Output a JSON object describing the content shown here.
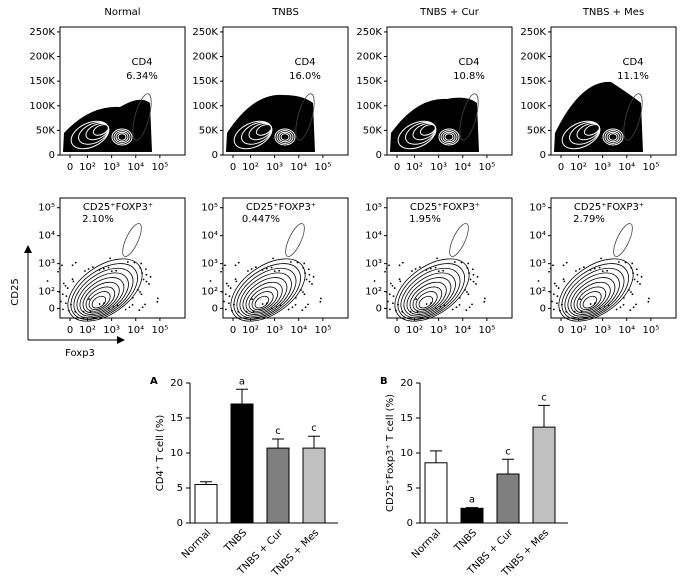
{
  "flow": {
    "axis_y_label": "CD25",
    "axis_x_label": "Foxp3",
    "top_yticks": [
      {
        "value": 0,
        "label": "0"
      },
      {
        "value": 50000,
        "label": "50K"
      },
      {
        "value": 100000,
        "label": "100K"
      },
      {
        "value": 150000,
        "label": "150K"
      },
      {
        "value": 200000,
        "label": "200K"
      },
      {
        "value": 250000,
        "label": "250K"
      }
    ],
    "ylim_top": [
      0,
      260000
    ],
    "xticks": [
      {
        "value": 0,
        "label": "0"
      },
      {
        "value": 100,
        "label": "10²"
      },
      {
        "value": 1000,
        "label": "10³"
      },
      {
        "value": 10000,
        "label": "10⁴"
      },
      {
        "value": 100000,
        "label": "10⁵"
      }
    ],
    "bottom_yticks": [
      {
        "value": 0,
        "label": "0"
      },
      {
        "value": 100,
        "label": "10²"
      },
      {
        "value": 1000,
        "label": "10³"
      },
      {
        "value": 10000,
        "label": "10⁴"
      },
      {
        "value": 100000,
        "label": "10⁵"
      }
    ],
    "panels": [
      {
        "title": "Normal",
        "top_gate": "CD4",
        "top_pct": "6.34%",
        "bottom_gate": "CD25⁺FOXP3⁺",
        "bottom_pct": "2.10%"
      },
      {
        "title": "TNBS",
        "top_gate": "CD4",
        "top_pct": "16.0%",
        "bottom_gate": "CD25⁺FOXP3⁺",
        "bottom_pct": "0.447%"
      },
      {
        "title": "TNBS + Cur",
        "top_gate": "CD4",
        "top_pct": "10.8%",
        "bottom_gate": "CD25⁺FOXP3⁺",
        "bottom_pct": "1.95%"
      },
      {
        "title": "TNBS + Mes",
        "top_gate": "CD4",
        "top_pct": "11.1%",
        "bottom_gate": "CD25⁺FOXP3⁺",
        "bottom_pct": "2.79%"
      }
    ]
  },
  "chart_data": [
    {
      "type": "bar",
      "panel": "A",
      "y_label": "CD4⁺ T cell (%)",
      "categories": [
        "Normal",
        "TNBS",
        "TNBS + Cur",
        "TNBS + Mes"
      ],
      "values": [
        5.5,
        17,
        10.7,
        10.7
      ],
      "errors": [
        0.4,
        2.1,
        1.3,
        1.7
      ],
      "annotations": [
        null,
        "a",
        "c",
        "c"
      ],
      "colors": [
        "#ffffff",
        "#000000",
        "#7f7f7f",
        "#c0c0c0"
      ],
      "ylim": [
        0,
        20
      ],
      "yticks": [
        0,
        5,
        10,
        15,
        20
      ]
    },
    {
      "type": "bar",
      "panel": "B",
      "y_label": "CD25⁺Foxp3⁺ T cell (%)",
      "categories": [
        "Normal",
        "TNBS",
        "TNBS + Cur",
        "TNBS + Mes"
      ],
      "values": [
        8.6,
        2.1,
        7.0,
        13.7
      ],
      "errors": [
        1.7,
        0.1,
        2.1,
        3.1
      ],
      "annotations": [
        null,
        "a",
        "c",
        "c"
      ],
      "colors": [
        "#ffffff",
        "#000000",
        "#7f7f7f",
        "#c0c0c0"
      ],
      "ylim": [
        0,
        20
      ],
      "yticks": [
        0,
        5,
        10,
        15,
        20
      ]
    }
  ]
}
